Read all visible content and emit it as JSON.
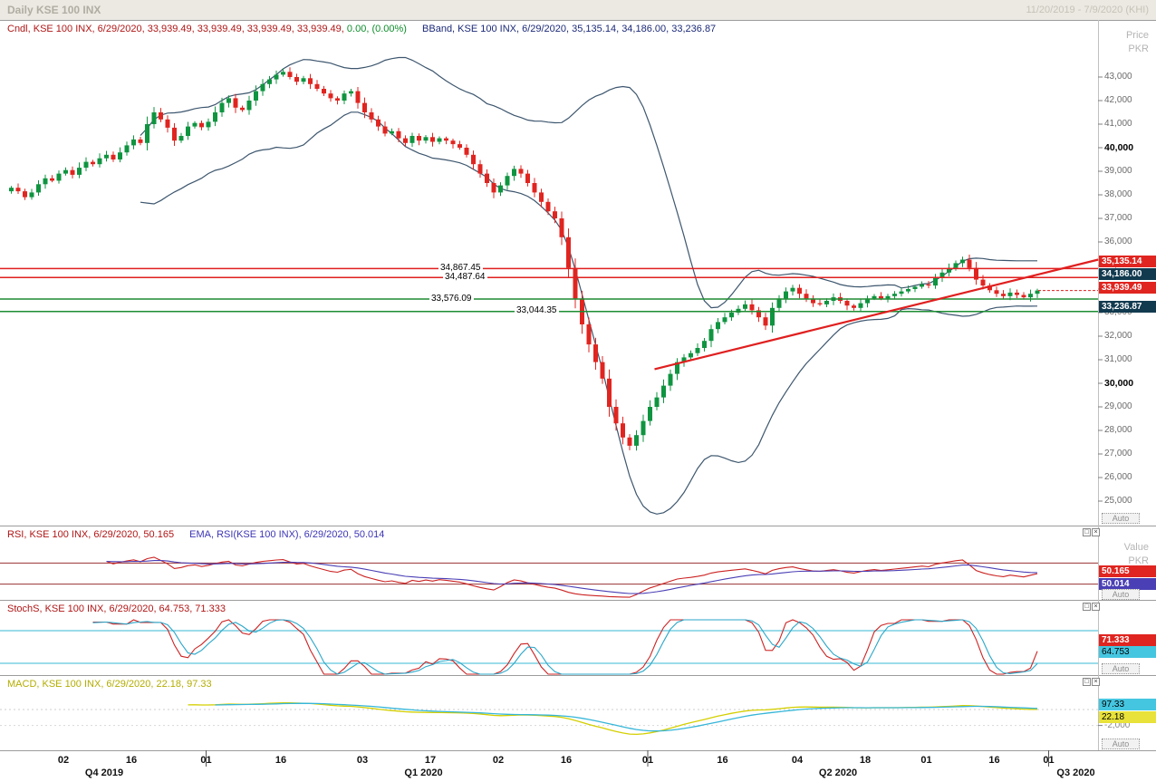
{
  "titlebar": {
    "title": "Daily KSE 100 INX",
    "range": "11/20/2019 - 7/9/2020 (KHI)"
  },
  "labels": {
    "auto": "Auto"
  },
  "icons": {
    "restore": "□",
    "close": "×"
  },
  "colors": {
    "bull": "#0f9440",
    "bear": "#e02520",
    "bband": "#3d566e",
    "level_red": "#e01f1f",
    "level_green": "#1e8c33",
    "trend": "#e01f1f",
    "rsi": "#cc2222",
    "rsi_ema": "#4a3fb5",
    "rsi_level": "#993333",
    "stoch_k": "#cc2222",
    "stoch_d": "#2aa7c9",
    "stoch_level": "#5fc8dd",
    "macd": "#d4cf00",
    "macd_signal": "#36b6d8"
  },
  "main_panel": {
    "legend": {
      "cndl": "Cndl, KSE 100 INX, 6/29/2020, 33,939.49, 33,939.49, 33,939.49, 33,939.49,",
      "change": "0.00, (0.00%)",
      "bband": "BBand, KSE 100 INX, 6/29/2020, 35,135.14, 34,186.00, 33,236.87"
    },
    "axis_unit_top": "Price",
    "axis_unit_bottom": "PKR",
    "price_tags": [
      {
        "label": "35,135.14",
        "style": "red"
      },
      {
        "label": "34,186.00",
        "style": "dark"
      },
      {
        "label": "33,939.49",
        "style": "red"
      },
      {
        "label": "33,236.87",
        "style": "dark"
      }
    ],
    "hlines": [
      {
        "label": "34,867.45",
        "value": 34867.45,
        "color": "red"
      },
      {
        "label": "34,487.64",
        "value": 34487.64,
        "color": "red"
      },
      {
        "label": "33,576.09",
        "value": 33576.09,
        "color": "green"
      },
      {
        "label": "33,044.35",
        "value": 33044.35,
        "color": "green"
      }
    ]
  },
  "rsi_panel": {
    "legend_rsi": "RSI, KSE 100 INX, 6/29/2020, 50.165",
    "legend_ema": "EMA, RSI(KSE 100 INX), 6/29/2020, 50.014",
    "axis_unit_top": "Value",
    "axis_unit_bottom": "PKR",
    "tags": [
      {
        "label": "50.165",
        "style": "red"
      },
      {
        "label": "50.014",
        "style": "purple"
      }
    ],
    "levels": [
      70,
      30
    ]
  },
  "stoch_panel": {
    "legend": "StochS, KSE 100 INX, 6/29/2020, 64.753, 71.333",
    "tags": [
      {
        "label": "71.333",
        "style": "red"
      },
      {
        "label": "64.753",
        "style": "cyan"
      }
    ],
    "levels": [
      80,
      20
    ]
  },
  "macd_panel": {
    "legend": "MACD, KSE 100 INX, 6/29/2020, 22.18, 97.33",
    "tags": [
      {
        "label": "97.33",
        "style": "cyan"
      },
      {
        "label": "22.18",
        "style": "yellow"
      }
    ],
    "gridline_label": "-2,000",
    "gridline_value": -2000
  },
  "x_axis": {
    "date_labels": [
      {
        "text": "02",
        "slot": 8
      },
      {
        "text": "16",
        "slot": 18
      },
      {
        "text": "01",
        "slot": 29
      },
      {
        "text": "16",
        "slot": 40
      },
      {
        "text": "03",
        "slot": 52
      },
      {
        "text": "17",
        "slot": 62
      },
      {
        "text": "02",
        "slot": 72
      },
      {
        "text": "16",
        "slot": 82
      },
      {
        "text": "01",
        "slot": 94
      },
      {
        "text": "16",
        "slot": 105
      },
      {
        "text": "04",
        "slot": 116
      },
      {
        "text": "18",
        "slot": 126
      },
      {
        "text": "01",
        "slot": 135
      },
      {
        "text": "16",
        "slot": 145
      },
      {
        "text": "01",
        "slot": 153
      }
    ],
    "quarter_labels": [
      {
        "text": "Q4 2019",
        "slot": 14
      },
      {
        "text": "Q1 2020",
        "slot": 61
      },
      {
        "text": "Q2 2020",
        "slot": 122
      },
      {
        "text": "Q3 2020",
        "slot": 157
      }
    ],
    "separator_slots": [
      29,
      94,
      153
    ]
  },
  "chart_data": {
    "type": "candlestick",
    "title": "Daily KSE 100 INX",
    "symbol": "KSE 100 INX",
    "interval": "Daily",
    "date_range": [
      "11/20/2019",
      "7/9/2020"
    ],
    "ylabel": "Price PKR",
    "ylim": [
      24600,
      43900
    ],
    "y_ticks": [
      43000,
      42000,
      41000,
      40000,
      39000,
      38000,
      37000,
      36000,
      35000,
      34000,
      33000,
      32000,
      31000,
      30000,
      29000,
      28000,
      27000,
      26000,
      25000
    ],
    "emphasized_ticks": [
      40000,
      30000
    ],
    "last_bar": {
      "date": "6/29/2020",
      "open": 33939.49,
      "high": 33939.49,
      "low": 33939.49,
      "close": 33939.49,
      "change": 0.0,
      "change_pct": "0.00%"
    },
    "bollinger": {
      "period": 20,
      "stdev": 2,
      "last_upper": 35135.14,
      "last_middle": 34186.0,
      "last_lower": 33236.87
    },
    "levels": [
      34867.45,
      34487.64,
      33576.09,
      33044.35
    ],
    "trendline": {
      "x1_slot": 95,
      "y1_price": 30600,
      "x2_slot": 160.3,
      "y2_price": 35250
    },
    "indicators": [
      {
        "type": "rsi",
        "value": 50.165,
        "ema_value": 50.014,
        "levels": [
          70,
          30
        ]
      },
      {
        "type": "stochastic_slow",
        "k": 64.753,
        "d": 71.333,
        "levels": [
          80,
          20
        ]
      },
      {
        "type": "macd",
        "macd": 22.18,
        "signal": 97.33,
        "visible_gridline": -2000
      }
    ],
    "closes": [
      38300,
      38150,
      37900,
      38100,
      38450,
      38700,
      38600,
      38900,
      39050,
      38850,
      39150,
      39400,
      39300,
      39550,
      39700,
      39500,
      39800,
      40100,
      40350,
      40200,
      41000,
      41500,
      41200,
      40850,
      40300,
      40500,
      40900,
      41050,
      40870,
      41100,
      41500,
      41900,
      42100,
      41700,
      41600,
      42000,
      42400,
      42700,
      42900,
      43100,
      43219,
      43000,
      42800,
      42950,
      42700,
      42500,
      42300,
      42100,
      42000,
      42300,
      42400,
      41900,
      41500,
      41200,
      40900,
      40600,
      40700,
      40400,
      40200,
      40500,
      40300,
      40450,
      40250,
      40400,
      40300,
      40150,
      40000,
      39700,
      39300,
      38900,
      38500,
      38100,
      38400,
      38800,
      39100,
      38900,
      38500,
      38100,
      37700,
      37300,
      37000,
      36200,
      34900,
      33600,
      32500,
      31650,
      30900,
      30200,
      29000,
      28300,
      27700,
      27350,
      27800,
      28400,
      29000,
      29400,
      29900,
      30400,
      30900,
      31100,
      31280,
      31500,
      31800,
      32300,
      32600,
      32800,
      33000,
      33160,
      33350,
      33100,
      32800,
      32450,
      33200,
      33600,
      33900,
      34050,
      33800,
      33600,
      33400,
      33350,
      33500,
      33650,
      33500,
      33300,
      33200,
      33400,
      33600,
      33700,
      33600,
      33700,
      33800,
      33900,
      34000,
      34100,
      34200,
      34150,
      34500,
      34700,
      34900,
      35100,
      35250,
      34900,
      34400,
      34150,
      33950,
      33800,
      33700,
      33850,
      33750,
      33650,
      33800,
      33939.49
    ]
  }
}
